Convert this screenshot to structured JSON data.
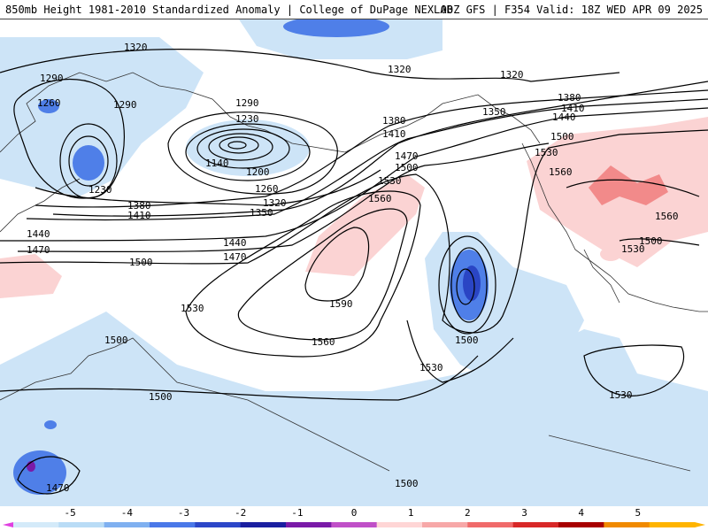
{
  "header": {
    "left_title": "850mb Height 1981-2010 Standardized Anomaly | College of DuPage NEXLAB",
    "right_title": "00Z GFS | F354 Valid: 18Z WED APR 09 2025"
  },
  "contour_labels": [
    "1320",
    "1320",
    "1320",
    "1290",
    "1260",
    "1290",
    "1290",
    "1230",
    "1140",
    "1200",
    "1230",
    "1260",
    "1320",
    "1350",
    "1380",
    "1410",
    "1380",
    "1410",
    "1350",
    "1380",
    "1410",
    "1440",
    "1500",
    "1530",
    "1560",
    "1470",
    "1500",
    "1530",
    "1560",
    "1590",
    "1440",
    "1470",
    "1500",
    "1530",
    "1560",
    "1500",
    "1530",
    "1500",
    "1530",
    "1440",
    "1470",
    "1500",
    "1500",
    "1470",
    "1560",
    "1500",
    "1530"
  ],
  "legend": {
    "ticks": [
      "-5",
      "-4",
      "-3",
      "-2",
      "-1",
      "0",
      "1",
      "2",
      "3",
      "4",
      "5"
    ],
    "colors": [
      "#d4eaf9",
      "#b9dcf6",
      "#7fb0f0",
      "#4a78e8",
      "#2c47c8",
      "#1a1fa0",
      "#7a1aa8",
      "#c050c8",
      "#ffd6d6",
      "#f7a8a8",
      "#f06a6a",
      "#d82828",
      "#a80000",
      "#f08a00",
      "#ffb400"
    ]
  },
  "colors": {
    "negative_light": "#cde4f7",
    "negative_mid": "#4f7fe8",
    "negative_dark": "#2a45c4",
    "positive_light": "#fbd3d3",
    "positive_mid": "#f28a8a",
    "positive_dark": "#e85d5d",
    "contour": "#000000",
    "land_outline": "#333333"
  }
}
